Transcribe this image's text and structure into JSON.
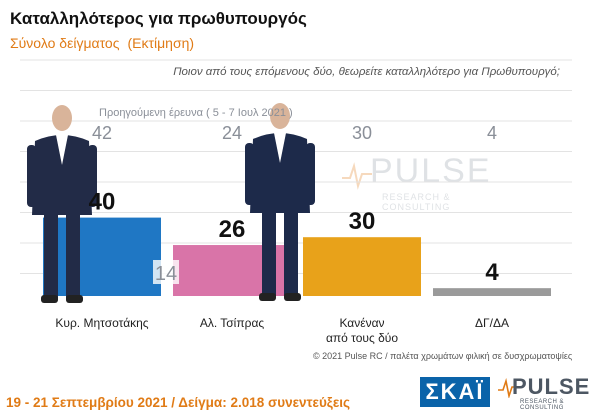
{
  "header": {
    "title": "Καταλληλότερος για πρωθυπουργός",
    "subtitle": "Σύνολο δείγματος",
    "subtitle_note": "(Εκτίμηση)",
    "question": "Ποιον από τους επόμενους δύο, θεωρείτε καταλληλότερο για Πρωθυπουργό;"
  },
  "chart_data": {
    "type": "bar",
    "categories": [
      "Κυρ. Μητσοτάκης",
      "Αλ. Τσίπρας",
      "Κανέναν από τους δύο",
      "ΔΓ/ΔΑ"
    ],
    "category_lines": [
      [
        "Κυρ. Μητσοτάκης"
      ],
      [
        "Αλ. Τσίπρας"
      ],
      [
        "Κανέναν",
        "από τους δύο"
      ],
      [
        "ΔΓ/ΔΑ"
      ]
    ],
    "values": [
      40,
      26,
      30,
      4
    ],
    "colors": [
      "#1f77c4",
      "#d974a8",
      "#e8a21a",
      "#9a9a9a"
    ],
    "previous": {
      "label": "Προηγούμενη έρευνα  ( 5 - 7 Ιουλ 2021 )",
      "values": [
        42,
        24,
        30,
        4
      ],
      "color": "#8a8f98"
    },
    "annotation": "14",
    "grid": true,
    "ylim": [
      0,
      60
    ]
  },
  "watermark": {
    "text": "PULSE",
    "sub": "RESEARCH & CONSULTING"
  },
  "footer": {
    "copyright": "© 2021 Pulse RC   /   παλέτα χρωμάτων φιλική σε δυσχρωματοψίες",
    "dates": "19 - 21 Σεπτεμβρίου 2021  /  Δείγμα:  2.018 συνεντεύξεις"
  },
  "logos": {
    "skai": "ΣΚΑΪ",
    "pulse": "PULSE",
    "pulse_sub": "RESEARCH & CONSULTING"
  }
}
